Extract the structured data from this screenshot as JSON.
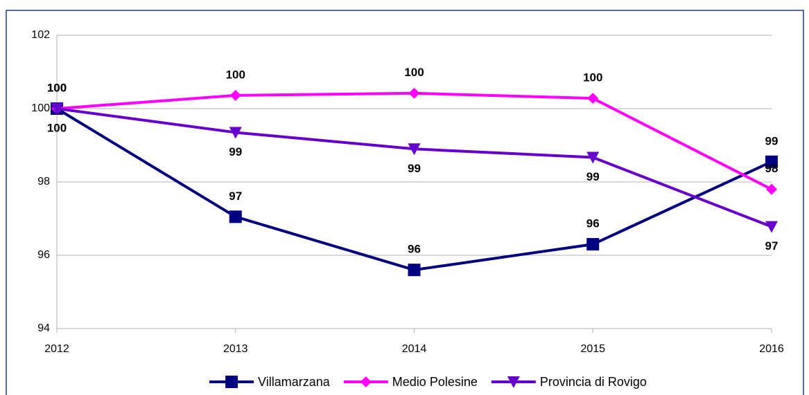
{
  "chart_data": {
    "type": "line",
    "categories": [
      "2012",
      "2013",
      "2014",
      "2015",
      "2016"
    ],
    "series": [
      {
        "name": "Villamarzana",
        "color": "#000080",
        "marker": "square",
        "values": [
          100,
          97.05,
          95.6,
          96.3,
          98.55
        ],
        "value_labels": [
          "100",
          "97",
          "96",
          "96",
          "99"
        ],
        "label_position": "above"
      },
      {
        "name": "Medio Polesine",
        "color": "#ff00ff",
        "marker": "diamond",
        "values": [
          100,
          100.36,
          100.42,
          100.28,
          97.8
        ],
        "value_labels": [
          "100",
          "100",
          "100",
          "100",
          "98"
        ],
        "label_position": "above"
      },
      {
        "name": "Provincia di Rovigo",
        "color": "#6600cc",
        "marker": "triangle-down",
        "values": [
          100,
          99.35,
          98.9,
          98.67,
          96.78
        ],
        "value_labels": [
          "100",
          "99",
          "99",
          "99",
          "97"
        ],
        "label_position": "below"
      }
    ],
    "ylim": [
      94,
      102
    ],
    "yticks": [
      94,
      96,
      98,
      100,
      102
    ],
    "grid": true,
    "legend": "bottom"
  }
}
